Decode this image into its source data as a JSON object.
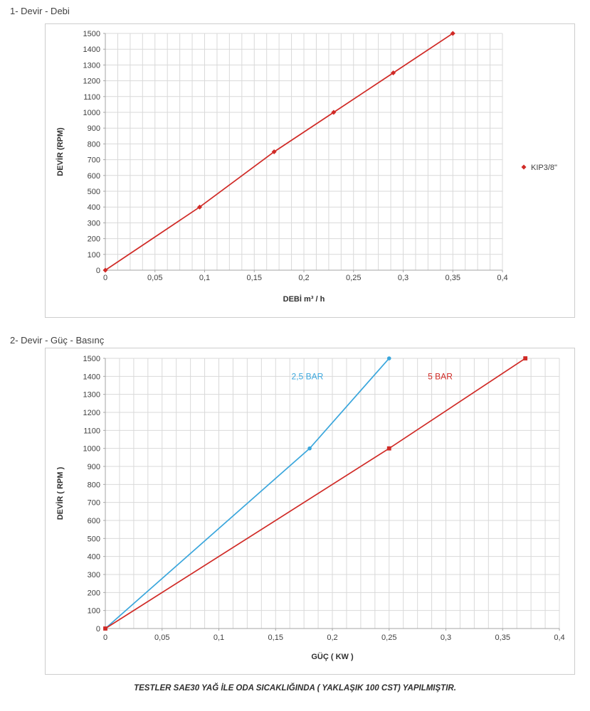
{
  "sections": [
    {
      "heading": "1- Devir - Debi"
    },
    {
      "heading": "2- Devir - Güç - Basınç"
    }
  ],
  "footnote": "TESTLER SAE30 YAĞ İLE ODA SICAKLIĞINDA ( YAKLAŞIK 100 CST) YAPILMIŞTIR.",
  "colors": {
    "red_series": "#d02a26",
    "blue_series": "#3aa6dc",
    "grid": "#d9d9d9",
    "axis": "#a6a6a6",
    "text": "#404040"
  },
  "chart_data": [
    {
      "type": "line",
      "title": "1- Devir - Debi",
      "xlabel": "DEBİ m³ / h",
      "ylabel": "DEVİR (RPM)",
      "xlim": [
        0,
        0.4
      ],
      "ylim": [
        0,
        1500
      ],
      "x_ticks": [
        0,
        0.05,
        0.1,
        0.15,
        0.2,
        0.25,
        0.3,
        0.35,
        0.4
      ],
      "x_tick_labels": [
        "0",
        "0,05",
        "0,1",
        "0,15",
        "0,2",
        "0,25",
        "0,3",
        "0,35",
        "0,4"
      ],
      "y_ticks": [
        0,
        100,
        200,
        300,
        400,
        500,
        600,
        700,
        800,
        900,
        1000,
        1100,
        1200,
        1300,
        1400,
        1500
      ],
      "x_minor_step": 0.0125,
      "grid": true,
      "legend_position": "right",
      "legend": {
        "label": "KIP3/8\"",
        "marker": "diamond",
        "color": "#d02a26"
      },
      "series": [
        {
          "name": "KIP3/8\"",
          "color": "#d02a26",
          "marker": "diamond",
          "points": [
            [
              0,
              0
            ],
            [
              0.095,
              400
            ],
            [
              0.17,
              750
            ],
            [
              0.23,
              1000
            ],
            [
              0.29,
              1250
            ],
            [
              0.35,
              1500
            ]
          ]
        }
      ]
    },
    {
      "type": "line",
      "title": "2- Devir - Güç - Basınç",
      "xlabel": "GÜÇ ( KW )",
      "ylabel": "DEVİR ( RPM )",
      "xlim": [
        0,
        0.4
      ],
      "ylim": [
        0,
        1500
      ],
      "x_ticks": [
        0,
        0.05,
        0.1,
        0.15,
        0.2,
        0.25,
        0.3,
        0.35,
        0.4
      ],
      "x_tick_labels": [
        "0",
        "0,05",
        "0,1",
        "0,15",
        "0,2",
        "0,25",
        "0,3",
        "0,35",
        "0,4"
      ],
      "y_ticks": [
        0,
        100,
        200,
        300,
        400,
        500,
        600,
        700,
        800,
        900,
        1000,
        1100,
        1200,
        1300,
        1400,
        1500
      ],
      "x_minor_step": 0.0125,
      "grid": true,
      "series": [
        {
          "name": "2,5 BAR",
          "color": "#3aa6dc",
          "marker": "circle",
          "points": [
            [
              0,
              0
            ],
            [
              0.18,
              1000
            ],
            [
              0.25,
              1500
            ]
          ],
          "label": {
            "text": "2,5 BAR",
            "x": 0.178,
            "y": 1400
          }
        },
        {
          "name": "5 BAR",
          "color": "#d02a26",
          "marker": "square",
          "points": [
            [
              0,
              0
            ],
            [
              0.25,
              1000
            ],
            [
              0.37,
              1500
            ]
          ],
          "label": {
            "text": "5 BAR",
            "x": 0.295,
            "y": 1400
          }
        }
      ]
    }
  ]
}
